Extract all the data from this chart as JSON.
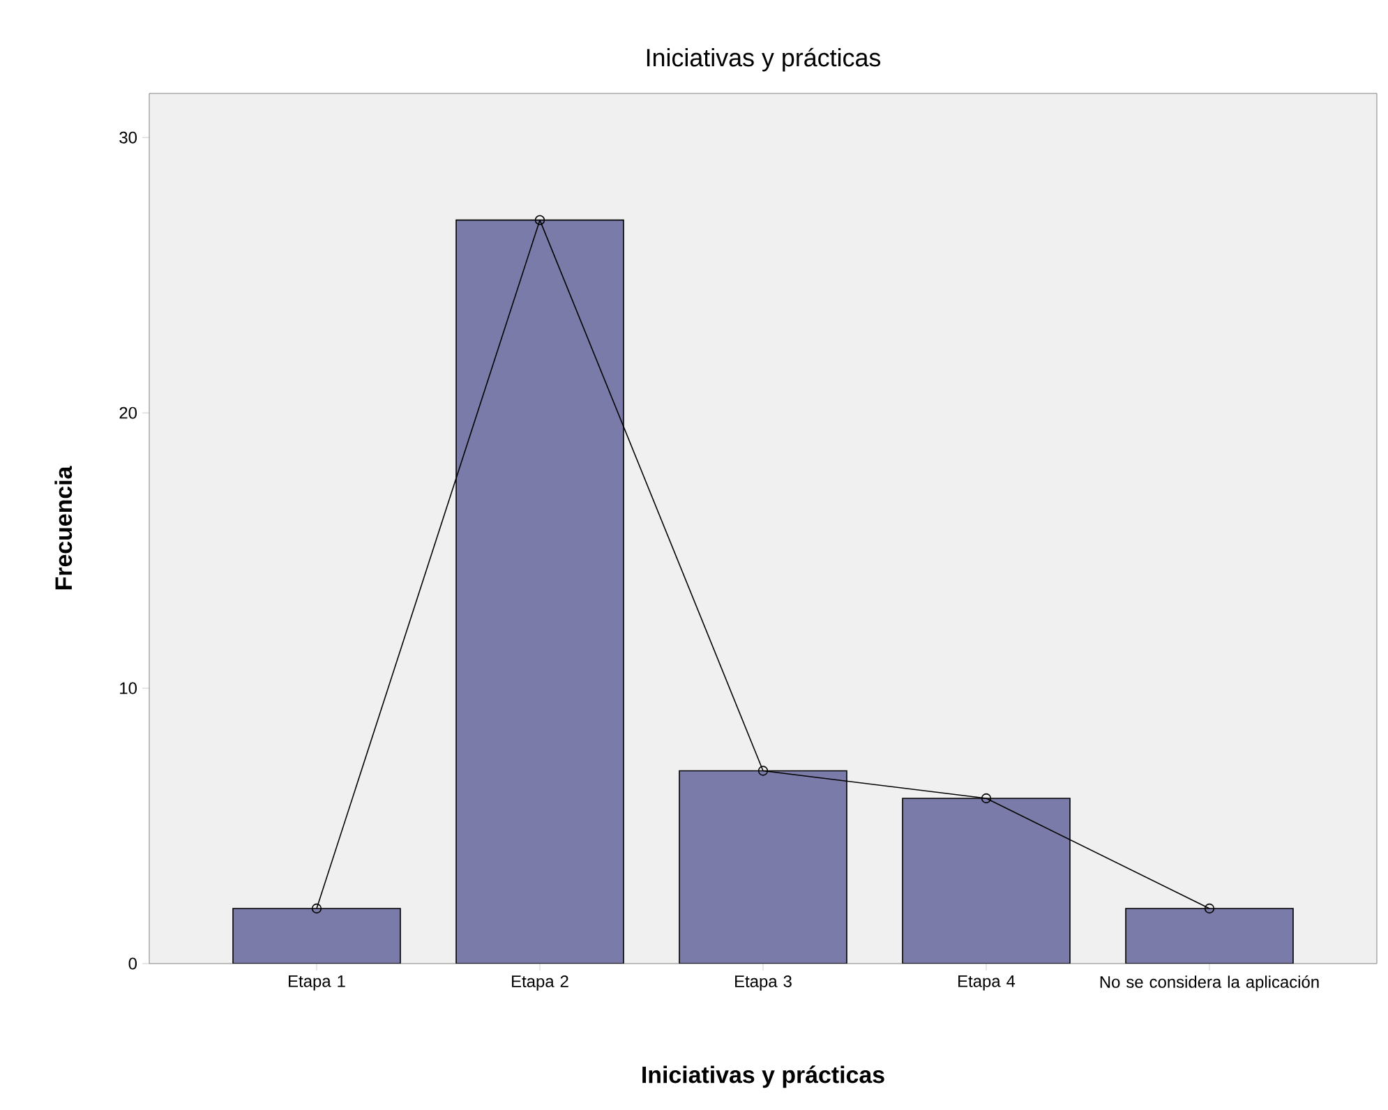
{
  "chart_data": {
    "type": "bar",
    "title": "Iniciativas y prácticas",
    "xlabel": "Iniciativas y prácticas",
    "ylabel": "Frecuencia",
    "categories": [
      "Etapa 1",
      "Etapa 2",
      "Etapa 3",
      "Etapa 4",
      "No se considera la aplicación"
    ],
    "series": [
      {
        "color": "#7b7ba9",
        "values": [
          2,
          27,
          7,
          6,
          2
        ]
      },
      {
        "type": "line",
        "color": "#000000",
        "values": [
          2,
          27,
          7,
          6,
          2
        ]
      }
    ],
    "marker": "circle",
    "ylim": [
      0,
      31.6
    ],
    "yticks": [
      0,
      10,
      20,
      30
    ]
  }
}
